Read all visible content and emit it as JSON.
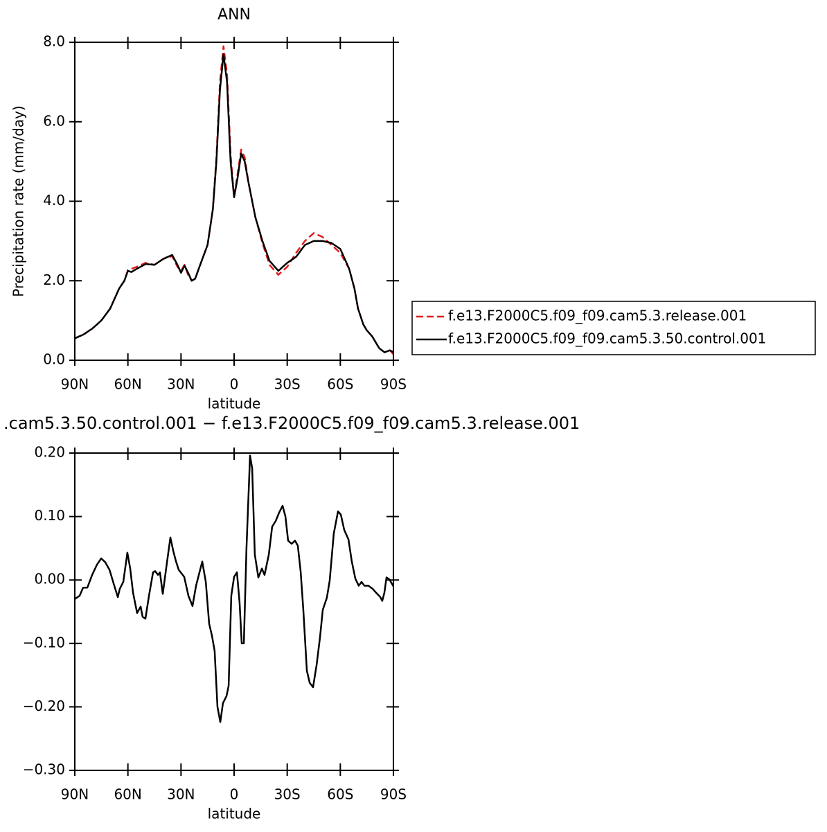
{
  "chart_data": [
    {
      "type": "line",
      "title": "ANN",
      "xlabel": "latitude",
      "ylabel": "Precipitation rate (mm/day)",
      "x": [
        90,
        85,
        80,
        75,
        70,
        65,
        62,
        60,
        58,
        55,
        50,
        45,
        40,
        35,
        32,
        30,
        28,
        26,
        24,
        22,
        20,
        15,
        12,
        10,
        8,
        6,
        4,
        2,
        0,
        -2,
        -4,
        -6,
        -8,
        -12,
        -16,
        -20,
        -25,
        -30,
        -35,
        -40,
        -45,
        -50,
        -55,
        -60,
        -65,
        -68,
        -70,
        -73,
        -75,
        -78,
        -82,
        -85,
        -88,
        -90
      ],
      "series": [
        {
          "name": "f.e13.F2000C5.f09_f09.cam5.3.release.001",
          "color": "#e41a1c",
          "dashed": true,
          "values": [
            0.55,
            0.65,
            0.8,
            1.0,
            1.3,
            1.8,
            2.0,
            2.27,
            2.3,
            2.35,
            2.45,
            2.4,
            2.55,
            2.62,
            2.35,
            2.25,
            2.4,
            2.15,
            2.0,
            2.05,
            2.3,
            2.9,
            3.8,
            5.1,
            7.0,
            7.9,
            7.2,
            5.2,
            4.1,
            4.7,
            5.3,
            5.1,
            4.5,
            3.6,
            2.95,
            2.4,
            2.15,
            2.35,
            2.7,
            3.0,
            3.2,
            3.1,
            2.9,
            2.7,
            2.3,
            1.8,
            1.3,
            0.9,
            0.75,
            0.6,
            0.3,
            0.2,
            0.25,
            0.15
          ]
        },
        {
          "name": "f.e13.F2000C5.f09_f09.cam5.3.50.control.001",
          "color": "#000000",
          "dashed": false,
          "values": [
            0.55,
            0.65,
            0.8,
            1.0,
            1.3,
            1.8,
            2.0,
            2.25,
            2.22,
            2.3,
            2.42,
            2.4,
            2.55,
            2.65,
            2.4,
            2.2,
            2.38,
            2.2,
            2.0,
            2.05,
            2.3,
            2.9,
            3.8,
            5.0,
            6.8,
            7.7,
            7.0,
            5.0,
            4.1,
            4.6,
            5.2,
            5.0,
            4.5,
            3.6,
            3.0,
            2.5,
            2.25,
            2.45,
            2.6,
            2.9,
            3.0,
            3.0,
            2.95,
            2.8,
            2.3,
            1.8,
            1.3,
            0.9,
            0.75,
            0.6,
            0.3,
            0.2,
            0.25,
            0.2
          ]
        }
      ],
      "xlim": [
        90,
        -90
      ],
      "xticks": [
        {
          "value": 90,
          "label": "90N"
        },
        {
          "value": 60,
          "label": "60N"
        },
        {
          "value": 30,
          "label": "30N"
        },
        0,
        {
          "value": -30,
          "label": "30S"
        },
        {
          "value": -60,
          "label": "60S"
        },
        {
          "value": -90,
          "label": "90S"
        }
      ],
      "ylim": [
        0,
        8
      ],
      "yticks": [
        {
          "value": 0,
          "label": "0.0"
        },
        {
          "value": 2,
          "label": "2.0"
        },
        {
          "value": 4,
          "label": "4.0"
        },
        {
          "value": 6,
          "label": "6.0"
        },
        {
          "value": 8,
          "label": "8.0"
        }
      ],
      "legend": "right"
    },
    {
      "type": "line",
      "title": ".cam5.3.50.control.001  −  f.e13.F2000C5.f09_f09.cam5.3.release.001",
      "xlabel": "latitude",
      "x": [
        90,
        87.3,
        85.3,
        82.9,
        80.2,
        77.5,
        75.1,
        72.8,
        70.4,
        67.7,
        65.7,
        64.6,
        62.6,
        60.3,
        58.7,
        57.1,
        54.8,
        52.8,
        51.7,
        50.1,
        48.1,
        45.8,
        44.6,
        43.0,
        41.9,
        40.3,
        38.4,
        36.0,
        34.4,
        32.9,
        31.3,
        28.2,
        25.8,
        23.5,
        21.5,
        18.0,
        16.0,
        14.1,
        12.5,
        11.0,
        9.4,
        7.8,
        6.3,
        4.3,
        3.1,
        1.6,
        0,
        -1.6,
        -3.1,
        -4.3,
        -5.5,
        -7.0,
        -9.0,
        -10.2,
        -11.7,
        -13.7,
        -15.7,
        -17.2,
        -19.6,
        -21.5,
        -23.5,
        -25.4,
        -27.4,
        -29.0,
        -30.5,
        -32.5,
        -34.4,
        -36.0,
        -37.6,
        -39.1,
        -41.1,
        -42.7,
        -44.6,
        -46.6,
        -48.5,
        -50.1,
        -52.4,
        -54.0,
        -56.3,
        -58.7,
        -60.3,
        -62.2,
        -64.6,
        -66.5,
        -68.5,
        -70.4,
        -72.0,
        -73.6,
        -75.9,
        -78.3,
        -80.2,
        -82.6,
        -83.7,
        -84.9,
        -86.1,
        -87.7,
        -90
      ],
      "series": [
        {
          "color": "#000000",
          "dashed": false,
          "values": [
            -0.03,
            -0.025,
            -0.012,
            -0.012,
            0.008,
            0.024,
            0.034,
            0.028,
            0.016,
            -0.009,
            -0.027,
            -0.014,
            -0.003,
            0.043,
            0.018,
            -0.02,
            -0.052,
            -0.042,
            -0.058,
            -0.061,
            -0.025,
            0.012,
            0.014,
            0.008,
            0.012,
            -0.022,
            0.018,
            0.067,
            0.046,
            0.03,
            0.016,
            0.005,
            -0.025,
            -0.041,
            -0.009,
            0.029,
            -0.003,
            -0.069,
            -0.088,
            -0.112,
            -0.2,
            -0.224,
            -0.194,
            -0.183,
            -0.167,
            -0.025,
            0.005,
            0.012,
            -0.036,
            -0.1,
            -0.1,
            0.051,
            0.196,
            0.176,
            0.04,
            0.004,
            0.018,
            0.008,
            0.04,
            0.084,
            0.093,
            0.106,
            0.117,
            0.1,
            0.062,
            0.057,
            0.062,
            0.054,
            0.013,
            -0.047,
            -0.143,
            -0.162,
            -0.169,
            -0.134,
            -0.091,
            -0.047,
            -0.028,
            -0.001,
            0.073,
            0.108,
            0.103,
            0.079,
            0.064,
            0.029,
            0.002,
            -0.009,
            -0.003,
            -0.009,
            -0.009,
            -0.014,
            -0.02,
            -0.027,
            -0.033,
            -0.02,
            0.004,
            0.001,
            -0.01
          ]
        }
      ],
      "xlim": [
        90,
        -90
      ],
      "xticks": [
        {
          "value": 90,
          "label": "90N"
        },
        {
          "value": 60,
          "label": "60N"
        },
        {
          "value": 30,
          "label": "30N"
        },
        0,
        {
          "value": -30,
          "label": "30S"
        },
        {
          "value": -60,
          "label": "60S"
        },
        {
          "value": -90,
          "label": "90S"
        }
      ],
      "ylim": [
        -0.3,
        0.2
      ],
      "yticks": [
        {
          "value": -0.3,
          "label": "−0.30"
        },
        {
          "value": -0.2,
          "label": "−0.20"
        },
        {
          "value": -0.1,
          "label": "−0.10"
        },
        {
          "value": 0,
          "label": "0.00"
        },
        {
          "value": 0.1,
          "label": "0.10"
        },
        {
          "value": 0.2,
          "label": "0.20"
        }
      ]
    }
  ]
}
